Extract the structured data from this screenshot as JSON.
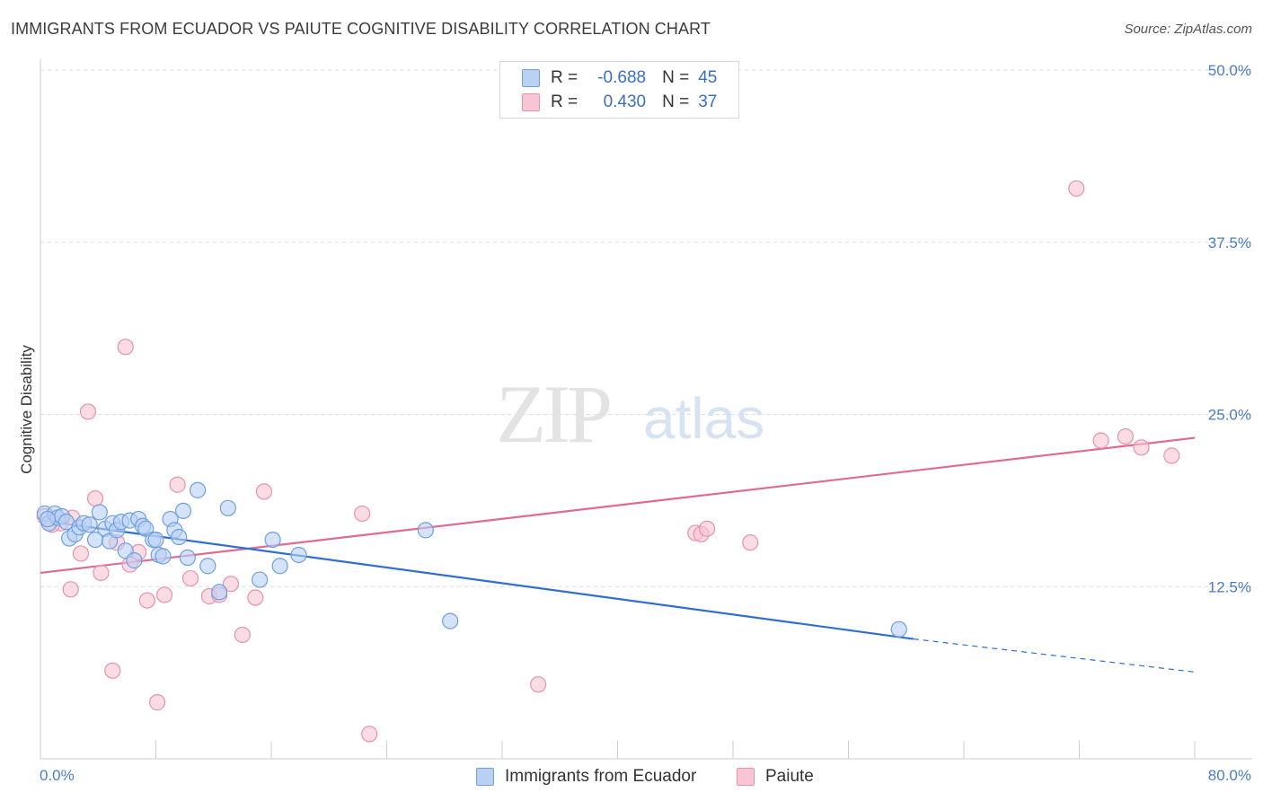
{
  "header": {
    "title": "IMMIGRANTS FROM ECUADOR VS PAIUTE COGNITIVE DISABILITY CORRELATION CHART",
    "source": "Source: ZipAtlas.com"
  },
  "watermark": {
    "zip": "ZIP",
    "atlas": "atlas"
  },
  "legend": {
    "rows": [
      {
        "r_label": "R =",
        "r_value": "-0.688",
        "n_label": "N =",
        "n_value": "45"
      },
      {
        "r_label": "R =",
        "r_value": "0.430",
        "n_label": "N =",
        "n_value": "37"
      }
    ]
  },
  "colors": {
    "ecuador_fill": "#b9d1f3",
    "ecuador_stroke": "#6f9fe0",
    "ecuador_line": "#2f6fd1",
    "paiute_fill": "#f7c5d4",
    "paiute_stroke": "#e792ad",
    "paiute_line": "#e06b92",
    "tick_text": "#4a7cc7",
    "grid": "#dddddd"
  },
  "chart_data": {
    "type": "scatter",
    "title": "IMMIGRANTS FROM ECUADOR VS PAIUTE COGNITIVE DISABILITY CORRELATION CHART",
    "xlabel": "",
    "ylabel": "Cognitive Disability",
    "xlim": [
      0,
      80
    ],
    "ylim": [
      0,
      50
    ],
    "x_tick_labels": [
      "0.0%",
      "80.0%"
    ],
    "y_ticks": [
      12.5,
      25.0,
      37.5,
      50.0
    ],
    "y_tick_labels": [
      "12.5%",
      "25.0%",
      "37.5%",
      "50.0%"
    ],
    "grid": true,
    "legend_position": "top-center",
    "series": [
      {
        "name": "Immigrants from Ecuador",
        "r": -0.688,
        "n": 45,
        "points": [
          [
            0.3,
            17.8
          ],
          [
            0.6,
            17.1
          ],
          [
            1.0,
            17.8
          ],
          [
            1.2,
            17.5
          ],
          [
            1.5,
            17.6
          ],
          [
            1.8,
            17.2
          ],
          [
            2.0,
            16.0
          ],
          [
            2.4,
            16.3
          ],
          [
            2.7,
            16.8
          ],
          [
            3.0,
            17.1
          ],
          [
            3.4,
            17.0
          ],
          [
            3.8,
            15.9
          ],
          [
            4.1,
            17.9
          ],
          [
            4.5,
            16.7
          ],
          [
            4.8,
            15.8
          ],
          [
            5.0,
            17.1
          ],
          [
            5.3,
            16.6
          ],
          [
            5.6,
            17.2
          ],
          [
            5.9,
            15.1
          ],
          [
            6.2,
            17.3
          ],
          [
            6.5,
            14.4
          ],
          [
            6.8,
            17.4
          ],
          [
            7.1,
            16.9
          ],
          [
            7.3,
            16.7
          ],
          [
            7.8,
            15.9
          ],
          [
            8.0,
            15.9
          ],
          [
            8.2,
            14.8
          ],
          [
            8.5,
            14.7
          ],
          [
            9.0,
            17.4
          ],
          [
            9.3,
            16.6
          ],
          [
            9.6,
            16.1
          ],
          [
            9.9,
            18.0
          ],
          [
            10.2,
            14.6
          ],
          [
            10.9,
            19.5
          ],
          [
            11.6,
            14.0
          ],
          [
            12.4,
            12.1
          ],
          [
            13.0,
            18.2
          ],
          [
            15.2,
            13.0
          ],
          [
            16.1,
            15.9
          ],
          [
            16.6,
            14.0
          ],
          [
            17.9,
            14.8
          ],
          [
            26.7,
            16.6
          ],
          [
            28.4,
            10.0
          ],
          [
            59.5,
            9.4
          ],
          [
            0.5,
            17.4
          ]
        ],
        "trend": {
          "x": [
            0,
            60.5
          ],
          "y": [
            17.3,
            8.7
          ]
        },
        "trend_dashed": {
          "x": [
            60.5,
            80
          ],
          "y": [
            8.7,
            6.3
          ]
        }
      },
      {
        "name": "Paiute",
        "r": 0.43,
        "n": 37,
        "points": [
          [
            0.3,
            17.6
          ],
          [
            1.4,
            17.1
          ],
          [
            2.2,
            17.5
          ],
          [
            2.1,
            12.3
          ],
          [
            2.8,
            14.9
          ],
          [
            3.3,
            25.2
          ],
          [
            3.8,
            18.9
          ],
          [
            4.2,
            13.5
          ],
          [
            5.0,
            6.4
          ],
          [
            5.3,
            15.7
          ],
          [
            5.9,
            29.9
          ],
          [
            6.2,
            14.1
          ],
          [
            6.8,
            15.0
          ],
          [
            7.4,
            11.5
          ],
          [
            8.1,
            4.1
          ],
          [
            8.6,
            11.9
          ],
          [
            9.5,
            19.9
          ],
          [
            10.4,
            13.1
          ],
          [
            11.7,
            11.8
          ],
          [
            12.4,
            11.9
          ],
          [
            13.2,
            12.7
          ],
          [
            14.0,
            9.0
          ],
          [
            14.9,
            11.7
          ],
          [
            15.5,
            19.4
          ],
          [
            22.3,
            17.8
          ],
          [
            22.8,
            1.8
          ],
          [
            34.5,
            5.4
          ],
          [
            45.4,
            16.4
          ],
          [
            45.8,
            16.3
          ],
          [
            46.2,
            16.7
          ],
          [
            49.2,
            15.7
          ],
          [
            71.8,
            41.4
          ],
          [
            73.5,
            23.1
          ],
          [
            75.2,
            23.4
          ],
          [
            76.3,
            22.6
          ],
          [
            78.4,
            22.0
          ],
          [
            0.8,
            17.0
          ]
        ],
        "trend": {
          "x": [
            0,
            80
          ],
          "y": [
            13.5,
            23.3
          ]
        }
      }
    ]
  },
  "bottom_legend": {
    "items": [
      {
        "label": "Immigrants from Ecuador"
      },
      {
        "label": "Paiute"
      }
    ]
  }
}
